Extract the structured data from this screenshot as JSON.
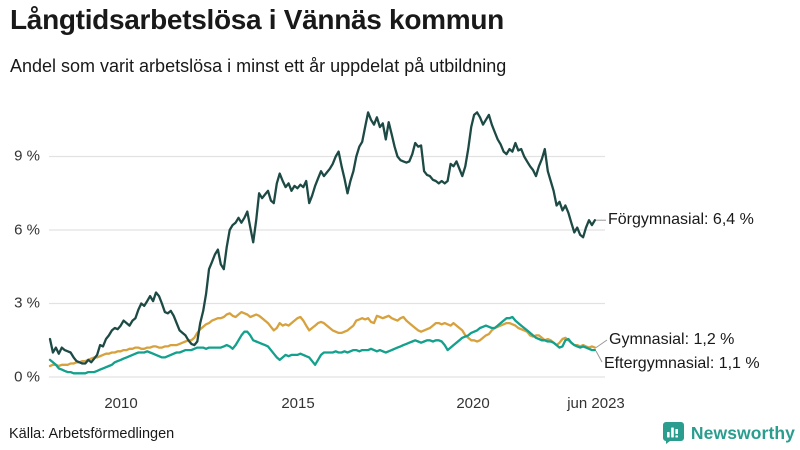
{
  "header": {
    "title": "Långtidsarbetslösa i Vännäs kommun",
    "subtitle": "Andel som varit arbetslösa i minst ett år uppdelat på utbildning"
  },
  "footer": {
    "source": "Källa: Arbetsförmedlingen"
  },
  "logo": {
    "text": "Newsworthy",
    "color": "#2a9d8f",
    "icon": "speech-bubble-bar-chart"
  },
  "colors": {
    "grid": "#e2e2e2",
    "connector": "#999999",
    "text": "#191919",
    "tick_text": "#333333"
  },
  "chart_data": {
    "type": "line",
    "title": "Långtidsarbetslösa i Vännäs kommun",
    "subtitle": "Andel som varit arbetslösa i minst ett år uppdelat på utbildning",
    "unit": "%",
    "x_start_year": 2008.0,
    "x_step_years": 0.08333,
    "x_end_label": "jun 2023",
    "xlim": [
      2008.0,
      2023.42
    ],
    "ylim": [
      0,
      11.2
    ],
    "grid": "horizontal",
    "legend_position": "right-end-labels",
    "yticks": [
      {
        "value": 9,
        "label": "9 %"
      },
      {
        "value": 6,
        "label": "6 %"
      },
      {
        "value": 3,
        "label": "3 %"
      },
      {
        "value": 0,
        "label": "0 %"
      }
    ],
    "xticks": [
      {
        "value": 2010,
        "label": "2010"
      },
      {
        "value": 2015,
        "label": "2015"
      },
      {
        "value": 2020,
        "label": "2020"
      },
      {
        "value": 2023.417,
        "label": "jun 2023"
      }
    ],
    "series": [
      {
        "name": "Förgymnasial",
        "color": "#1d4a45",
        "end_value": "6,4 %",
        "end_label": "Förgymnasial: 6,4 %",
        "values": [
          1.55,
          1.0,
          1.2,
          0.95,
          1.2,
          1.1,
          1.05,
          1.0,
          0.8,
          0.65,
          0.6,
          0.55,
          0.55,
          0.7,
          0.6,
          0.75,
          0.9,
          1.3,
          1.25,
          1.55,
          1.7,
          1.9,
          2.0,
          1.95,
          2.1,
          2.3,
          2.2,
          2.1,
          2.3,
          2.4,
          2.75,
          3.0,
          2.9,
          3.1,
          3.3,
          3.1,
          3.45,
          3.3,
          3.0,
          2.65,
          2.6,
          2.7,
          2.5,
          2.2,
          1.9,
          1.8,
          1.7,
          1.5,
          1.35,
          1.3,
          1.45,
          2.2,
          2.7,
          3.4,
          4.4,
          4.7,
          5.0,
          5.2,
          4.6,
          4.4,
          5.3,
          6.0,
          6.2,
          6.3,
          6.5,
          6.3,
          6.5,
          6.75,
          6.1,
          5.5,
          6.4,
          7.5,
          7.3,
          7.45,
          7.6,
          7.2,
          7.1,
          7.9,
          8.3,
          8.0,
          7.75,
          7.9,
          7.6,
          7.8,
          7.7,
          7.85,
          7.75,
          8.0,
          7.1,
          7.4,
          7.8,
          8.1,
          8.4,
          8.2,
          8.35,
          8.5,
          8.7,
          9.0,
          9.2,
          8.6,
          8.1,
          7.5,
          8.0,
          8.4,
          9.0,
          9.4,
          9.6,
          10.2,
          10.8,
          10.5,
          10.3,
          10.6,
          10.2,
          10.35,
          9.7,
          10.4,
          9.9,
          9.4,
          9.0,
          8.85,
          8.8,
          8.75,
          8.8,
          9.1,
          9.55,
          9.4,
          9.45,
          8.4,
          8.25,
          8.2,
          8.05,
          8.0,
          7.9,
          8.0,
          7.9,
          8.0,
          8.7,
          8.6,
          8.8,
          8.5,
          8.2,
          8.6,
          9.3,
          10.2,
          10.7,
          10.8,
          10.6,
          10.3,
          10.5,
          10.7,
          10.3,
          10.0,
          9.7,
          9.5,
          9.2,
          9.1,
          9.3,
          9.2,
          9.55,
          9.25,
          9.3,
          9.0,
          8.8,
          8.6,
          8.45,
          8.2,
          8.6,
          8.9,
          9.3,
          8.4,
          8.0,
          7.6,
          7.0,
          7.15,
          6.8,
          7.0,
          6.7,
          6.3,
          5.9,
          6.1,
          5.8,
          5.7,
          6.1,
          6.4,
          6.2,
          6.4
        ]
      },
      {
        "name": "Gymnasial",
        "color": "#d7a23e",
        "end_value": "1,2 %",
        "end_label": "Gymnasial: 1,2 %",
        "values": [
          0.45,
          0.5,
          0.5,
          0.45,
          0.5,
          0.5,
          0.5,
          0.55,
          0.55,
          0.6,
          0.6,
          0.65,
          0.65,
          0.7,
          0.75,
          0.8,
          0.8,
          0.85,
          0.9,
          0.95,
          0.95,
          1.0,
          1.0,
          1.05,
          1.05,
          1.1,
          1.1,
          1.15,
          1.15,
          1.2,
          1.2,
          1.15,
          1.15,
          1.2,
          1.2,
          1.25,
          1.25,
          1.2,
          1.2,
          1.25,
          1.25,
          1.3,
          1.3,
          1.3,
          1.35,
          1.4,
          1.45,
          1.5,
          1.5,
          1.6,
          1.8,
          1.95,
          2.05,
          2.15,
          2.2,
          2.3,
          2.35,
          2.4,
          2.4,
          2.45,
          2.55,
          2.6,
          2.5,
          2.45,
          2.55,
          2.65,
          2.6,
          2.55,
          2.45,
          2.5,
          2.55,
          2.5,
          2.4,
          2.3,
          2.2,
          2.05,
          1.9,
          2.0,
          2.2,
          2.1,
          2.15,
          2.1,
          2.2,
          2.3,
          2.4,
          2.45,
          2.3,
          2.1,
          1.9,
          2.0,
          2.1,
          2.2,
          2.25,
          2.2,
          2.1,
          2.0,
          1.9,
          1.85,
          1.8,
          1.8,
          1.85,
          1.9,
          2.0,
          2.1,
          2.3,
          2.35,
          2.4,
          2.35,
          2.4,
          2.25,
          2.2,
          2.5,
          2.45,
          2.4,
          2.45,
          2.5,
          2.4,
          2.35,
          2.3,
          2.4,
          2.45,
          2.3,
          2.2,
          2.1,
          2.0,
          1.9,
          1.85,
          1.9,
          1.95,
          2.0,
          2.1,
          2.2,
          2.2,
          2.15,
          2.2,
          2.15,
          2.1,
          2.2,
          2.1,
          2.0,
          1.9,
          1.7,
          1.6,
          1.5,
          1.5,
          1.45,
          1.5,
          1.6,
          1.7,
          1.75,
          1.9,
          2.0,
          2.05,
          2.1,
          2.15,
          2.2,
          2.2,
          2.15,
          2.1,
          2.0,
          1.95,
          1.9,
          1.85,
          1.7,
          1.65,
          1.7,
          1.7,
          1.6,
          1.5,
          1.55,
          1.5,
          1.4,
          1.3,
          1.4,
          1.55,
          1.6,
          1.5,
          1.4,
          1.3,
          1.3,
          1.25,
          1.3,
          1.25,
          1.2,
          1.25,
          1.2
        ]
      },
      {
        "name": "Eftergymnasial",
        "color": "#13a08c",
        "end_value": "1,1 %",
        "end_label": "Eftergymnasial: 1,1 %",
        "values": [
          0.7,
          0.6,
          0.5,
          0.35,
          0.3,
          0.25,
          0.2,
          0.2,
          0.15,
          0.15,
          0.15,
          0.15,
          0.15,
          0.2,
          0.2,
          0.2,
          0.25,
          0.3,
          0.35,
          0.4,
          0.45,
          0.5,
          0.6,
          0.65,
          0.7,
          0.75,
          0.8,
          0.85,
          0.9,
          0.95,
          1.0,
          1.0,
          1.0,
          1.05,
          1.0,
          0.95,
          0.9,
          0.85,
          0.8,
          0.8,
          0.85,
          0.9,
          0.95,
          1.0,
          1.0,
          1.05,
          1.1,
          1.1,
          1.1,
          1.15,
          1.2,
          1.2,
          1.2,
          1.15,
          1.2,
          1.2,
          1.2,
          1.2,
          1.2,
          1.25,
          1.3,
          1.25,
          1.15,
          1.3,
          1.5,
          1.7,
          1.85,
          1.85,
          1.7,
          1.5,
          1.45,
          1.4,
          1.35,
          1.3,
          1.25,
          1.1,
          0.95,
          0.8,
          0.7,
          0.8,
          0.9,
          0.85,
          0.9,
          0.9,
          0.9,
          0.95,
          0.9,
          0.85,
          0.8,
          0.65,
          0.5,
          0.7,
          0.9,
          1.0,
          1.0,
          1.0,
          1.0,
          1.05,
          1.0,
          1.0,
          1.05,
          1.0,
          1.05,
          1.1,
          1.1,
          1.05,
          1.1,
          1.1,
          1.1,
          1.15,
          1.1,
          1.05,
          1.1,
          1.05,
          1.0,
          1.05,
          1.1,
          1.15,
          1.2,
          1.25,
          1.3,
          1.35,
          1.4,
          1.45,
          1.5,
          1.45,
          1.4,
          1.45,
          1.5,
          1.5,
          1.45,
          1.5,
          1.5,
          1.45,
          1.3,
          1.1,
          1.2,
          1.3,
          1.4,
          1.5,
          1.6,
          1.65,
          1.7,
          1.8,
          1.85,
          1.9,
          2.0,
          2.05,
          2.1,
          2.05,
          2.0,
          2.0,
          2.1,
          2.2,
          2.3,
          2.4,
          2.4,
          2.45,
          2.3,
          2.2,
          2.1,
          2.0,
          1.9,
          1.8,
          1.7,
          1.6,
          1.55,
          1.5,
          1.5,
          1.45,
          1.45,
          1.4,
          1.3,
          1.2,
          1.25,
          1.5,
          1.55,
          1.4,
          1.3,
          1.25,
          1.2,
          1.25,
          1.2,
          1.15,
          1.1,
          1.1
        ]
      }
    ]
  }
}
